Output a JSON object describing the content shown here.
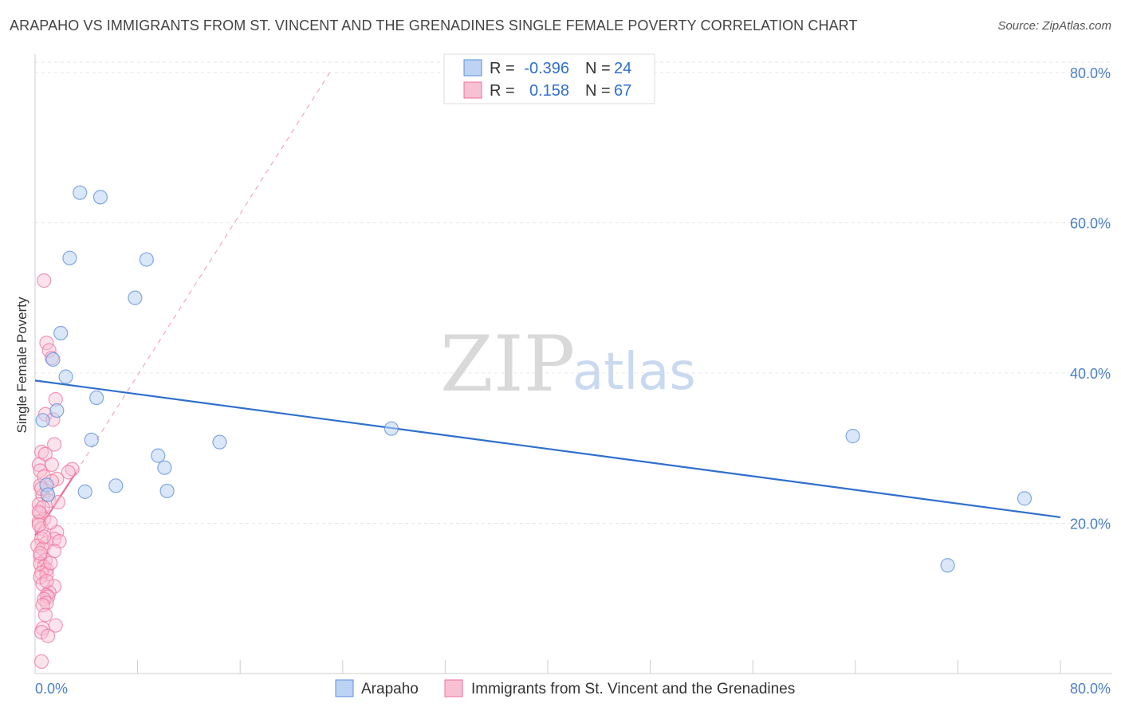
{
  "title": "ARAPAHO VS IMMIGRANTS FROM ST. VINCENT AND THE GRENADINES SINGLE FEMALE POVERTY CORRELATION CHART",
  "source": "Source: ZipAtlas.com",
  "watermark": {
    "zip": "ZIP",
    "atlas": "atlas"
  },
  "colors": {
    "blue": "#5b8fd9",
    "blue_fill": "#bcd3f3",
    "pink": "#ef6e98",
    "pink_fill": "#f7c1d3",
    "tick": "#4a7fc9"
  },
  "legend": {
    "rows": [
      {
        "r_label": "R =",
        "r_value": "-0.396",
        "n_label": "N =",
        "n_value": "24"
      },
      {
        "r_label": "R =",
        "r_value": "0.158",
        "n_label": "N =",
        "n_value": "67"
      }
    ]
  },
  "chart_data": {
    "type": "scatter",
    "title": "ARAPAHO VS IMMIGRANTS FROM ST. VINCENT AND THE GRENADINES SINGLE FEMALE POVERTY CORRELATION CHART",
    "xlabel": "",
    "ylabel": "Single Female Poverty",
    "xlim": [
      0,
      80
    ],
    "ylim": [
      0,
      82
    ],
    "x_tick_labels": [
      "0.0%",
      "80.0%"
    ],
    "y_ticks": [
      20,
      40,
      60,
      80
    ],
    "y_tick_labels": [
      "20.0%",
      "40.0%",
      "60.0%",
      "80.0%"
    ],
    "series": [
      {
        "name": "Arapaho",
        "r": -0.396,
        "n": 24,
        "trend": {
          "x0": 0,
          "y0": 39.0,
          "x1": 80,
          "y1": 20.8
        },
        "points": [
          [
            3.5,
            64.0
          ],
          [
            5.1,
            63.4
          ],
          [
            2.7,
            55.3
          ],
          [
            8.7,
            55.1
          ],
          [
            7.8,
            50.0
          ],
          [
            2.0,
            45.3
          ],
          [
            1.4,
            41.8
          ],
          [
            2.4,
            39.5
          ],
          [
            4.8,
            36.7
          ],
          [
            1.7,
            35.0
          ],
          [
            0.6,
            33.7
          ],
          [
            4.4,
            31.1
          ],
          [
            14.4,
            30.8
          ],
          [
            9.6,
            29.0
          ],
          [
            10.1,
            27.4
          ],
          [
            6.3,
            25.0
          ],
          [
            0.9,
            25.1
          ],
          [
            3.9,
            24.2
          ],
          [
            10.3,
            24.3
          ],
          [
            1.0,
            23.8
          ],
          [
            27.8,
            32.6
          ],
          [
            63.8,
            31.6
          ],
          [
            77.2,
            23.3
          ],
          [
            71.2,
            14.4
          ]
        ]
      },
      {
        "name": "Immigrants from St. Vincent and the Grenadines",
        "r": 0.158,
        "n": 67,
        "trend": {
          "x0": 0,
          "y0": 18.4,
          "x1": 3.2,
          "y1": 26.8
        },
        "trend_ext": {
          "x0": 3.2,
          "y0": 26.8,
          "x1": 23.0,
          "y1": 80.0
        },
        "points": [
          [
            0.7,
            52.3
          ],
          [
            0.9,
            44.0
          ],
          [
            1.1,
            43.0
          ],
          [
            1.3,
            42.0
          ],
          [
            1.6,
            36.5
          ],
          [
            0.8,
            34.5
          ],
          [
            1.4,
            33.8
          ],
          [
            1.5,
            30.5
          ],
          [
            0.5,
            29.5
          ],
          [
            0.8,
            29.2
          ],
          [
            0.3,
            27.8
          ],
          [
            1.3,
            27.8
          ],
          [
            0.4,
            27.0
          ],
          [
            2.9,
            27.2
          ],
          [
            2.6,
            26.8
          ],
          [
            0.7,
            26.2
          ],
          [
            1.7,
            25.9
          ],
          [
            0.4,
            25.0
          ],
          [
            1.3,
            25.6
          ],
          [
            0.9,
            24.3
          ],
          [
            0.6,
            23.7
          ],
          [
            1.1,
            23.0
          ],
          [
            1.8,
            22.8
          ],
          [
            0.3,
            22.5
          ],
          [
            0.6,
            22.1
          ],
          [
            0.4,
            21.3
          ],
          [
            0.7,
            20.6
          ],
          [
            0.3,
            20.2
          ],
          [
            0.5,
            19.3
          ],
          [
            1.7,
            18.8
          ],
          [
            0.5,
            17.9
          ],
          [
            0.9,
            17.4
          ],
          [
            1.5,
            17.9
          ],
          [
            1.9,
            17.6
          ],
          [
            0.2,
            17.0
          ],
          [
            0.6,
            16.6
          ],
          [
            1.5,
            16.3
          ],
          [
            0.4,
            15.6
          ],
          [
            0.8,
            15.1
          ],
          [
            0.4,
            14.6
          ],
          [
            0.7,
            14.2
          ],
          [
            0.9,
            13.8
          ],
          [
            0.5,
            13.4
          ],
          [
            0.9,
            13.2
          ],
          [
            0.4,
            12.8
          ],
          [
            1.5,
            11.6
          ],
          [
            0.6,
            11.9
          ],
          [
            1.1,
            10.8
          ],
          [
            0.9,
            10.4
          ],
          [
            1.0,
            10.2
          ],
          [
            0.7,
            9.9
          ],
          [
            0.9,
            9.4
          ],
          [
            0.6,
            9.1
          ],
          [
            1.6,
            6.4
          ],
          [
            0.6,
            6.0
          ],
          [
            0.5,
            5.5
          ],
          [
            1.0,
            5.0
          ],
          [
            0.5,
            1.6
          ],
          [
            0.3,
            21.5
          ],
          [
            0.7,
            18.2
          ],
          [
            1.2,
            14.7
          ],
          [
            0.3,
            19.8
          ],
          [
            0.5,
            24.6
          ],
          [
            0.9,
            12.3
          ],
          [
            0.4,
            16.0
          ],
          [
            1.2,
            20.1
          ],
          [
            0.8,
            7.8
          ]
        ]
      }
    ]
  }
}
